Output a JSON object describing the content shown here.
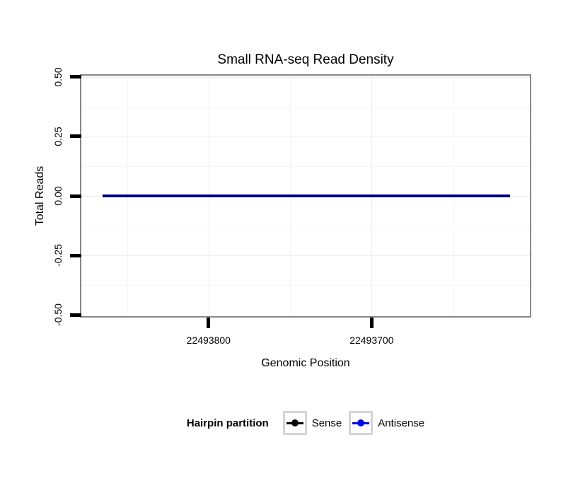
{
  "chart_data": {
    "type": "line",
    "title": "Small RNA-seq Read Density",
    "xlabel": "Genomic Position",
    "ylabel": "Total Reads",
    "x_axis": {
      "reversed": true,
      "lim": [
        22493878,
        22493603
      ],
      "major_ticks": [
        22493800,
        22493700
      ],
      "minor_ticks": [
        22493850,
        22493750,
        22493650
      ],
      "tick_labels": [
        "22493800",
        "22493700"
      ]
    },
    "y_axis": {
      "lim": [
        -0.505,
        0.505
      ],
      "major_ticks": [
        0.5,
        0.25,
        0,
        -0.25,
        -0.5
      ],
      "minor_ticks": [
        0.375,
        0.125,
        -0.125,
        -0.375
      ],
      "tick_labels": [
        "0.50",
        "0.25",
        "0.00",
        "-0.25",
        "-0.50"
      ]
    },
    "series": [
      {
        "name": "Antisense",
        "color": "#0000EE",
        "x": [
          22493865,
          22493615
        ],
        "y": [
          0,
          0
        ],
        "linewidth": 4
      },
      {
        "name": "Sense",
        "color": "#000000",
        "x": [
          22493865,
          22493615
        ],
        "y": [
          0,
          0
        ],
        "linewidth": 2
      }
    ],
    "legend": {
      "title": "Hairpin partition",
      "position": "bottom",
      "entries": [
        {
          "label": "Sense",
          "color": "#000000"
        },
        {
          "label": "Antisense",
          "color": "#0000EE"
        }
      ]
    },
    "colors": {
      "panel_border": "#878787",
      "grid_major": "#ededed",
      "grid_minor": "#f5f5f5",
      "tick_color": "#000000",
      "legend_key_border": "#d4d4d4",
      "background": "#ffffff"
    },
    "grid": true
  }
}
